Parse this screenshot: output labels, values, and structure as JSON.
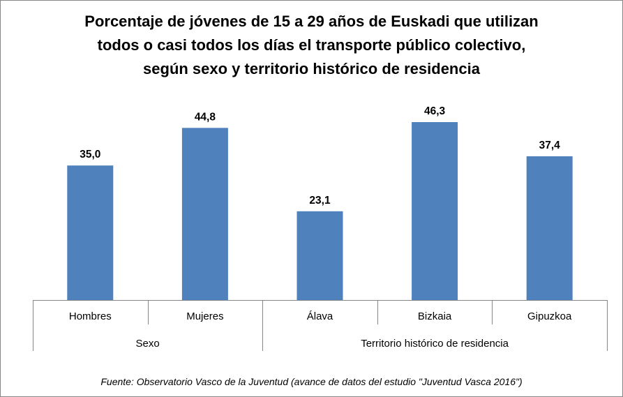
{
  "chart_data": {
    "type": "bar",
    "title": [
      "Porcentaje de jóvenes de 15 a 29 años de Euskadi que utilizan",
      "todos o casi todos los días el transporte público colectivo,",
      "según sexo y territorio histórico de residencia"
    ],
    "categories": [
      "Hombres",
      "Mujeres",
      "Álava",
      "Bizkaia",
      "Gipuzkoa"
    ],
    "values": [
      35.0,
      44.8,
      23.1,
      46.3,
      37.4
    ],
    "value_labels": [
      "35,0",
      "44,8",
      "23,1",
      "46,3",
      "37,4"
    ],
    "groups": [
      {
        "label": "Sexo",
        "categories": [
          "Hombres",
          "Mujeres"
        ]
      },
      {
        "label": "Territorio histórico de residencia",
        "categories": [
          "Álava",
          "Bizkaia",
          "Gipuzkoa"
        ]
      }
    ],
    "ylim": [
      0,
      50
    ],
    "grid": false,
    "legend": "none",
    "bar_color": "#4F81BD"
  },
  "source": "Fuente: Observatorio Vasco de la Juventud (avance de datos del estudio \"Juventud Vasca 2016\")"
}
